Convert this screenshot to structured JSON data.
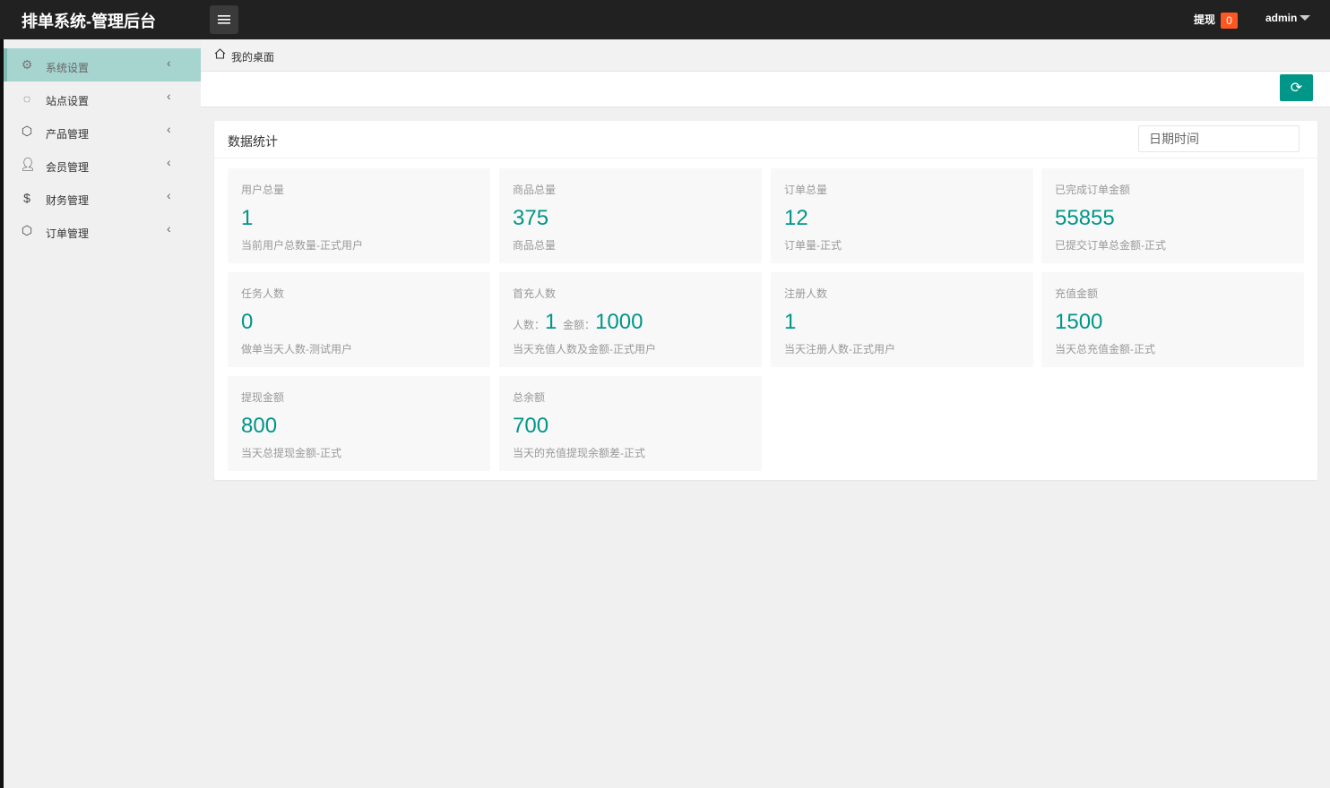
{
  "header": {
    "title": "排单系统-管理后台",
    "withdraw_label": "提现",
    "withdraw_count": "0",
    "user": "admin"
  },
  "sidebar": {
    "items": [
      {
        "label": "系统设置",
        "icon": "gear-icon",
        "active": true
      },
      {
        "label": "站点设置",
        "icon": "network-icon"
      },
      {
        "label": "产品管理",
        "icon": "box-icon"
      },
      {
        "label": "会员管理",
        "icon": "user-icon"
      },
      {
        "label": "财务管理",
        "icon": "dollar-icon"
      },
      {
        "label": "订单管理",
        "icon": "box-icon"
      }
    ]
  },
  "breadcrumb": {
    "label": "我的桌面"
  },
  "colors": {
    "accent": "#009688",
    "badge": "#ff5722",
    "active_menu": "#a6d4cf"
  },
  "stats": {
    "title": "数据统计",
    "date_placeholder": "日期时间",
    "cards": [
      {
        "title": "用户总量",
        "value": "1",
        "desc": "当前用户总数量-正式用户"
      },
      {
        "title": "商品总量",
        "value": "375",
        "desc": "商品总量"
      },
      {
        "title": "订单总量",
        "value": "12",
        "desc": "订单量-正式"
      },
      {
        "title": "已完成订单金额",
        "value": "55855",
        "desc": "已提交订单总金额-正式"
      },
      {
        "title": "任务人数",
        "value": "0",
        "desc": "做单当天人数-测试用户"
      },
      {
        "title": "首充人数",
        "people_label": "人数：",
        "people": "1",
        "amount_label": "金额：",
        "amount": "1000",
        "desc": "当天充值人数及金额-正式用户"
      },
      {
        "title": "注册人数",
        "value": "1",
        "desc": "当天注册人数-正式用户"
      },
      {
        "title": "充值金额",
        "value": "1500",
        "desc": "当天总充值金额-正式"
      },
      {
        "title": "提现金额",
        "value": "800",
        "desc": "当天总提现金额-正式"
      },
      {
        "title": "总余额",
        "value": "700",
        "desc": "当天的充值提现余额差-正式"
      }
    ]
  }
}
